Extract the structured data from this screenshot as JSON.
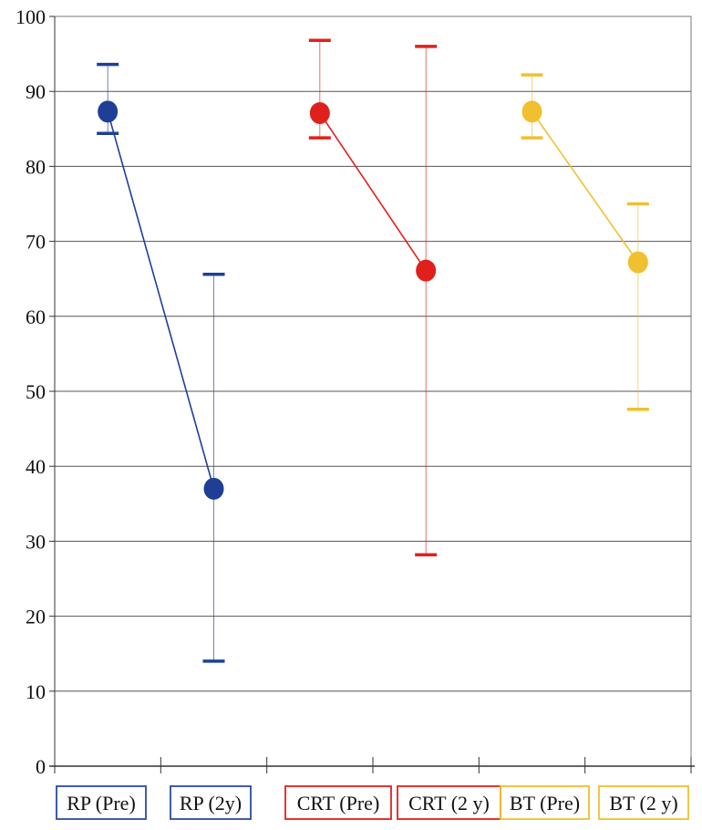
{
  "chart_data": {
    "type": "scatter",
    "title": "",
    "xlabel": "",
    "ylabel": "",
    "ylim": [
      0,
      100
    ],
    "yticks": [
      "0",
      "10",
      "20",
      "30",
      "40",
      "50",
      "60",
      "70",
      "80",
      "90",
      "100"
    ],
    "grid": true,
    "categories": [
      "RP (Pre)",
      "RP (2y)",
      "CRT (Pre)",
      "CRT (2 y)",
      "BT (Pre)",
      "BT (2 y)"
    ],
    "series": [
      {
        "name": "RP",
        "color": "#1f3f96",
        "points": [
          {
            "category": "RP (Pre)",
            "value": 87.3,
            "upper": 93.6,
            "lower": 84.4
          },
          {
            "category": "RP (2y)",
            "value": 37.0,
            "upper": 65.6,
            "lower": 14.0
          }
        ]
      },
      {
        "name": "CRT",
        "color": "#e0201c",
        "points": [
          {
            "category": "CRT (Pre)",
            "value": 87.1,
            "upper": 96.8,
            "lower": 83.8
          },
          {
            "category": "CRT (2 y)",
            "value": 66.1,
            "upper": 96.0,
            "lower": 28.2
          }
        ]
      },
      {
        "name": "BT",
        "color": "#f0c030",
        "points": [
          {
            "category": "BT (Pre)",
            "value": 87.3,
            "upper": 92.2,
            "lower": 83.8
          },
          {
            "category": "BT (2 y)",
            "value": 67.2,
            "upper": 75.0,
            "lower": 47.6
          }
        ]
      }
    ],
    "label_colors": [
      "#2a4aa8",
      "#2a4aa8",
      "#e0201c",
      "#e0201c",
      "#f0c030",
      "#f0c030"
    ]
  }
}
